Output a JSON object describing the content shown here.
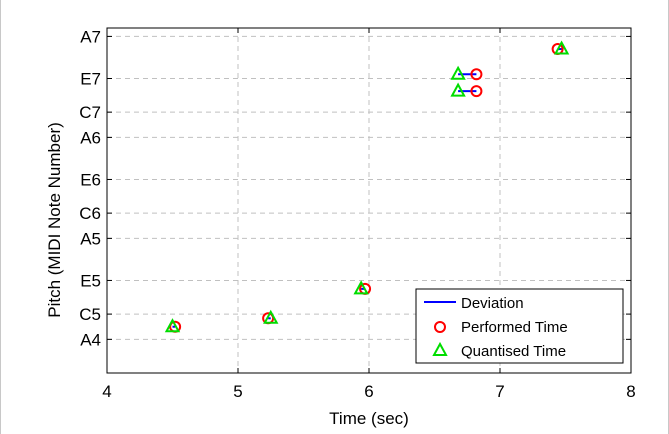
{
  "chart_data": {
    "type": "scatter",
    "xlabel": "Time (sec)",
    "ylabel": "Pitch (MIDI Note Number)",
    "xlim": [
      4,
      8
    ],
    "ylim": [
      53,
      94
    ],
    "x_ticks": [
      4,
      5,
      6,
      7,
      8
    ],
    "x_tick_labels": [
      "4",
      "5",
      "6",
      "7",
      "8"
    ],
    "y_ticks": [
      57,
      60,
      64,
      69,
      72,
      76,
      81,
      84,
      88,
      93
    ],
    "y_tick_labels": [
      "A4",
      "C5",
      "E5",
      "A5",
      "C6",
      "E6",
      "A6",
      "C7",
      "E7",
      "A7"
    ],
    "grid": true,
    "legend_position": "bottom-right",
    "legend": [
      "Deviation",
      "Performed Time",
      "Quantised Time"
    ],
    "colors": {
      "deviation": "#0000ff",
      "performed": "#ff0000",
      "quantised": "#00dd00",
      "grid": "#c0c0c0"
    },
    "series": [
      {
        "name": "Deviation",
        "segments": [
          {
            "x": [
              4.5,
              4.52
            ],
            "y": 58.5
          },
          {
            "x": [
              5.23,
              5.25
            ],
            "y": 59.5
          },
          {
            "x": [
              5.94,
              5.97
            ],
            "y": 63.0
          },
          {
            "x": [
              6.68,
              6.82
            ],
            "y": 86.5
          },
          {
            "x": [
              6.68,
              6.82
            ],
            "y": 88.5
          },
          {
            "x": [
              7.44,
              7.47
            ],
            "y": 91.5
          }
        ]
      },
      {
        "name": "Performed Time",
        "x": [
          4.52,
          5.23,
          5.97,
          6.82,
          6.82,
          7.44
        ],
        "y": [
          58.5,
          59.5,
          63.0,
          86.5,
          88.5,
          91.5
        ]
      },
      {
        "name": "Quantised Time",
        "x": [
          4.5,
          5.25,
          5.94,
          6.68,
          6.68,
          7.47
        ],
        "y": [
          58.5,
          59.5,
          63.0,
          86.5,
          88.5,
          91.5
        ]
      }
    ]
  }
}
